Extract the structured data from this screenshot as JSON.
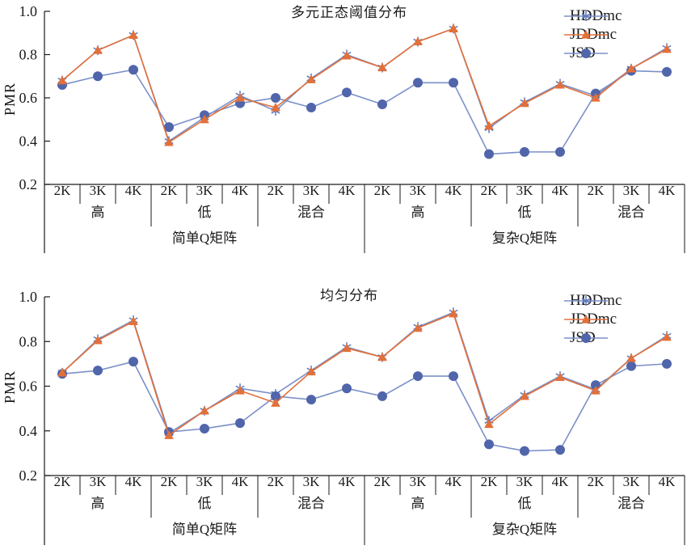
{
  "page": {
    "background": "#ffffff"
  },
  "colors": {
    "axis": "#1a1a1a",
    "text": "#1a1a1a",
    "hddmc_line": "#7b90c8",
    "hddmc_marker": "#5c79bd",
    "jddmc": "#e2703a",
    "jsd_line": "#7b90c8",
    "jsd_marker": "#5065aa"
  },
  "legend": {
    "position": "top-right",
    "items": [
      {
        "label": "HDDmc",
        "marker": "asterisk"
      },
      {
        "label": "JDDmc",
        "marker": "triangle"
      },
      {
        "label": "JSD",
        "marker": "circle"
      }
    ]
  },
  "chart_data": [
    {
      "type": "line",
      "title": "多元正态阈值分布",
      "xlabel": "",
      "ylabel": "PMR",
      "ylim": [
        0.2,
        1.0
      ],
      "yticks": [
        "1.0",
        "0.8",
        "0.6",
        "0.4",
        "0.2"
      ],
      "grid": false,
      "categories": [
        "2K",
        "3K",
        "4K",
        "2K",
        "3K",
        "4K",
        "2K",
        "3K",
        "4K",
        "2K",
        "3K",
        "4K",
        "2K",
        "3K",
        "4K",
        "2K",
        "3K",
        "4K"
      ],
      "group_labels": [
        "高",
        "低",
        "混合",
        "高",
        "低",
        "混合"
      ],
      "super_labels": [
        "简单Q矩阵",
        "复杂Q矩阵"
      ],
      "series": [
        {
          "name": "HDDmc",
          "marker": "asterisk",
          "values": [
            0.68,
            0.82,
            0.89,
            0.4,
            0.51,
            0.61,
            0.54,
            0.69,
            0.8,
            0.74,
            0.86,
            0.92,
            0.46,
            0.58,
            0.665,
            0.61,
            0.735,
            0.83
          ]
        },
        {
          "name": "JDDmc",
          "marker": "triangle",
          "values": [
            0.68,
            0.82,
            0.89,
            0.395,
            0.5,
            0.6,
            0.555,
            0.685,
            0.795,
            0.74,
            0.86,
            0.92,
            0.47,
            0.575,
            0.66,
            0.6,
            0.735,
            0.825
          ]
        },
        {
          "name": "JSD",
          "marker": "circle",
          "values": [
            0.66,
            0.7,
            0.73,
            0.465,
            0.52,
            0.575,
            0.6,
            0.555,
            0.625,
            0.57,
            0.67,
            0.67,
            0.34,
            0.35,
            0.35,
            0.62,
            0.725,
            0.72
          ]
        }
      ]
    },
    {
      "type": "line",
      "title": "均匀分布",
      "xlabel": "",
      "ylabel": "PMR",
      "ylim": [
        0.2,
        1.0
      ],
      "yticks": [
        "1.0",
        "0.8",
        "0.6",
        "0.4",
        "0.2"
      ],
      "grid": false,
      "categories": [
        "2K",
        "3K",
        "4K",
        "2K",
        "3K",
        "4K",
        "2K",
        "3K",
        "4K",
        "2K",
        "3K",
        "4K",
        "2K",
        "3K",
        "4K",
        "2K",
        "3K",
        "4K"
      ],
      "group_labels": [
        "高",
        "低",
        "混合",
        "高",
        "低",
        "混合"
      ],
      "super_labels": [
        "简单Q矩阵",
        "复杂Q矩阵"
      ],
      "series": [
        {
          "name": "HDDmc",
          "marker": "asterisk",
          "values": [
            0.66,
            0.81,
            0.895,
            0.39,
            0.49,
            0.59,
            0.565,
            0.67,
            0.775,
            0.73,
            0.865,
            0.93,
            0.445,
            0.56,
            0.645,
            0.585,
            0.725,
            0.825
          ]
        },
        {
          "name": "JDDmc",
          "marker": "triangle",
          "values": [
            0.66,
            0.805,
            0.89,
            0.38,
            0.49,
            0.58,
            0.525,
            0.665,
            0.77,
            0.73,
            0.86,
            0.925,
            0.43,
            0.555,
            0.64,
            0.58,
            0.725,
            0.82
          ]
        },
        {
          "name": "JSD",
          "marker": "circle",
          "values": [
            0.655,
            0.67,
            0.71,
            0.395,
            0.41,
            0.435,
            0.555,
            0.54,
            0.59,
            0.555,
            0.645,
            0.645,
            0.34,
            0.31,
            0.315,
            0.605,
            0.69,
            0.7
          ]
        }
      ]
    }
  ]
}
